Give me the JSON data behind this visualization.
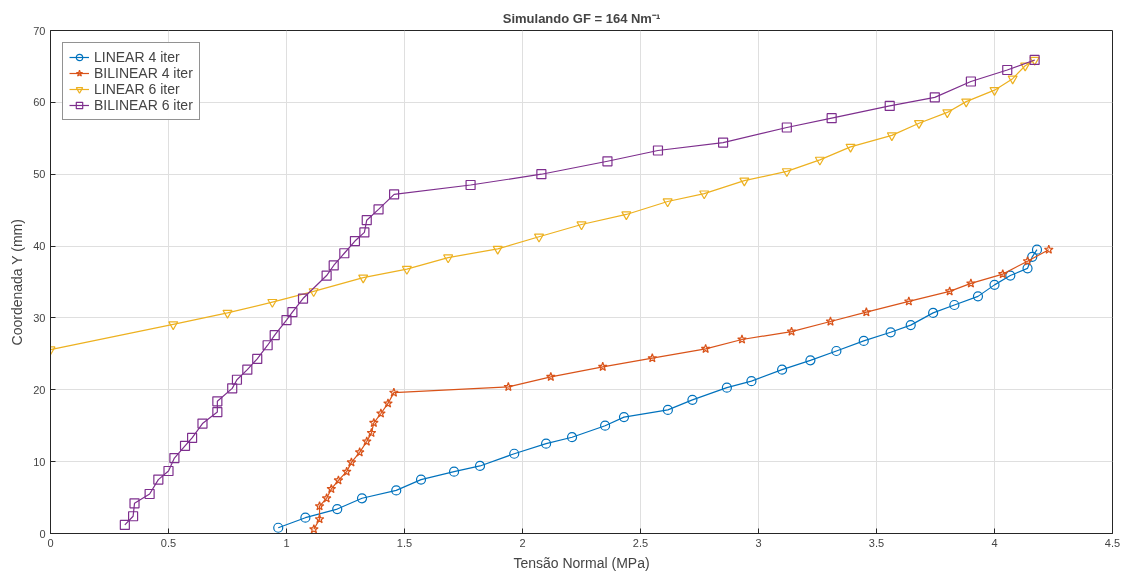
{
  "chart_data": {
    "type": "line",
    "title": "Simulando GF = 164 Nm⁻¹",
    "xlabel": "Tensão Normal (MPa)",
    "ylabel": "Coordenada Y (mm)",
    "xlim": [
      0,
      4.5
    ],
    "xticks": [
      0,
      0.5,
      1,
      1.5,
      2,
      2.5,
      3,
      3.5,
      4,
      4.5
    ],
    "ylim": [
      0,
      70
    ],
    "yticks": [
      0,
      10,
      20,
      30,
      40,
      50,
      60,
      70
    ],
    "grid": true,
    "legend": "top left",
    "line_style": "solid",
    "series": [
      {
        "name": "LINEAR 4 iter",
        "color": "#0072bd",
        "marker": "circle",
        "x": [
          0.965,
          1.08,
          1.215,
          1.32,
          1.465,
          1.57,
          1.71,
          1.82,
          1.965,
          2.1,
          2.21,
          2.35,
          2.43,
          2.616,
          2.72,
          2.866,
          2.97,
          3.1,
          3.22,
          3.33,
          3.446,
          3.56,
          3.645,
          3.74,
          3.83,
          3.93,
          4.0,
          4.067,
          4.14,
          4.16,
          4.18
        ],
        "values": [
          0.8,
          2.2,
          3.4,
          4.9,
          6.0,
          7.5,
          8.6,
          9.4,
          11.1,
          12.5,
          13.4,
          15.0,
          16.2,
          17.2,
          18.6,
          20.3,
          21.2,
          22.8,
          24.1,
          25.4,
          26.8,
          28.0,
          29.0,
          30.7,
          31.8,
          33.0,
          34.6,
          35.9,
          36.9,
          38.5,
          39.5
        ]
      },
      {
        "name": "BILINEAR 4 iter",
        "color": "#d95319",
        "marker": "star",
        "x": [
          1.116,
          1.14,
          1.14,
          1.17,
          1.19,
          1.22,
          1.255,
          1.275,
          1.31,
          1.34,
          1.36,
          1.37,
          1.4,
          1.43,
          1.455,
          1.94,
          2.12,
          2.34,
          2.55,
          2.776,
          2.93,
          3.14,
          3.305,
          3.457,
          3.637,
          3.81,
          3.9,
          4.035,
          4.14,
          4.23
        ],
        "values": [
          0.6,
          2.0,
          3.8,
          4.9,
          6.2,
          7.4,
          8.6,
          9.9,
          11.3,
          12.8,
          14.0,
          15.4,
          16.7,
          18.1,
          19.6,
          20.4,
          21.8,
          23.2,
          24.4,
          25.7,
          27.0,
          28.1,
          29.5,
          30.8,
          32.3,
          33.7,
          34.8,
          36.1,
          37.9,
          39.5
        ]
      },
      {
        "name": "LINEAR 6 iter",
        "color": "#edb120",
        "marker": "triangle",
        "x": [
          0.0,
          0.52,
          0.75,
          0.94,
          1.115,
          1.325,
          1.51,
          1.685,
          1.895,
          2.07,
          2.25,
          2.44,
          2.615,
          2.77,
          2.94,
          3.12,
          3.26,
          3.39,
          3.565,
          3.68,
          3.8,
          3.88,
          4.0,
          4.077,
          4.13,
          4.17
        ],
        "values": [
          25.6,
          29.1,
          30.7,
          32.2,
          33.7,
          35.6,
          36.8,
          38.4,
          39.6,
          41.3,
          43.0,
          44.4,
          46.2,
          47.3,
          49.1,
          50.4,
          52.0,
          53.8,
          55.4,
          57.1,
          58.6,
          60.1,
          61.7,
          63.3,
          65.1,
          65.9
        ]
      },
      {
        "name": "BILINEAR 6 iter",
        "color": "#7e2f8e",
        "marker": "square",
        "x": [
          0.315,
          0.35,
          0.356,
          0.42,
          0.457,
          0.5,
          0.525,
          0.57,
          0.6,
          0.644,
          0.707,
          0.707,
          0.77,
          0.79,
          0.834,
          0.876,
          0.92,
          0.95,
          1.0,
          1.025,
          1.07,
          1.17,
          1.2,
          1.245,
          1.29,
          1.33,
          1.34,
          1.39,
          1.456,
          1.78,
          2.08,
          2.36,
          2.574,
          2.85,
          3.12,
          3.31,
          3.556,
          3.747,
          3.9,
          4.054,
          4.17
        ],
        "values": [
          1.2,
          2.4,
          4.2,
          5.5,
          7.5,
          8.7,
          10.5,
          12.2,
          13.3,
          15.3,
          16.9,
          18.4,
          20.2,
          21.4,
          22.8,
          24.3,
          26.2,
          27.6,
          29.7,
          30.8,
          32.7,
          35.9,
          37.3,
          39.0,
          40.7,
          41.9,
          43.6,
          45.1,
          47.2,
          48.5,
          50.0,
          51.8,
          53.3,
          54.4,
          56.5,
          57.8,
          59.5,
          60.7,
          62.9,
          64.5,
          65.9
        ]
      }
    ]
  }
}
